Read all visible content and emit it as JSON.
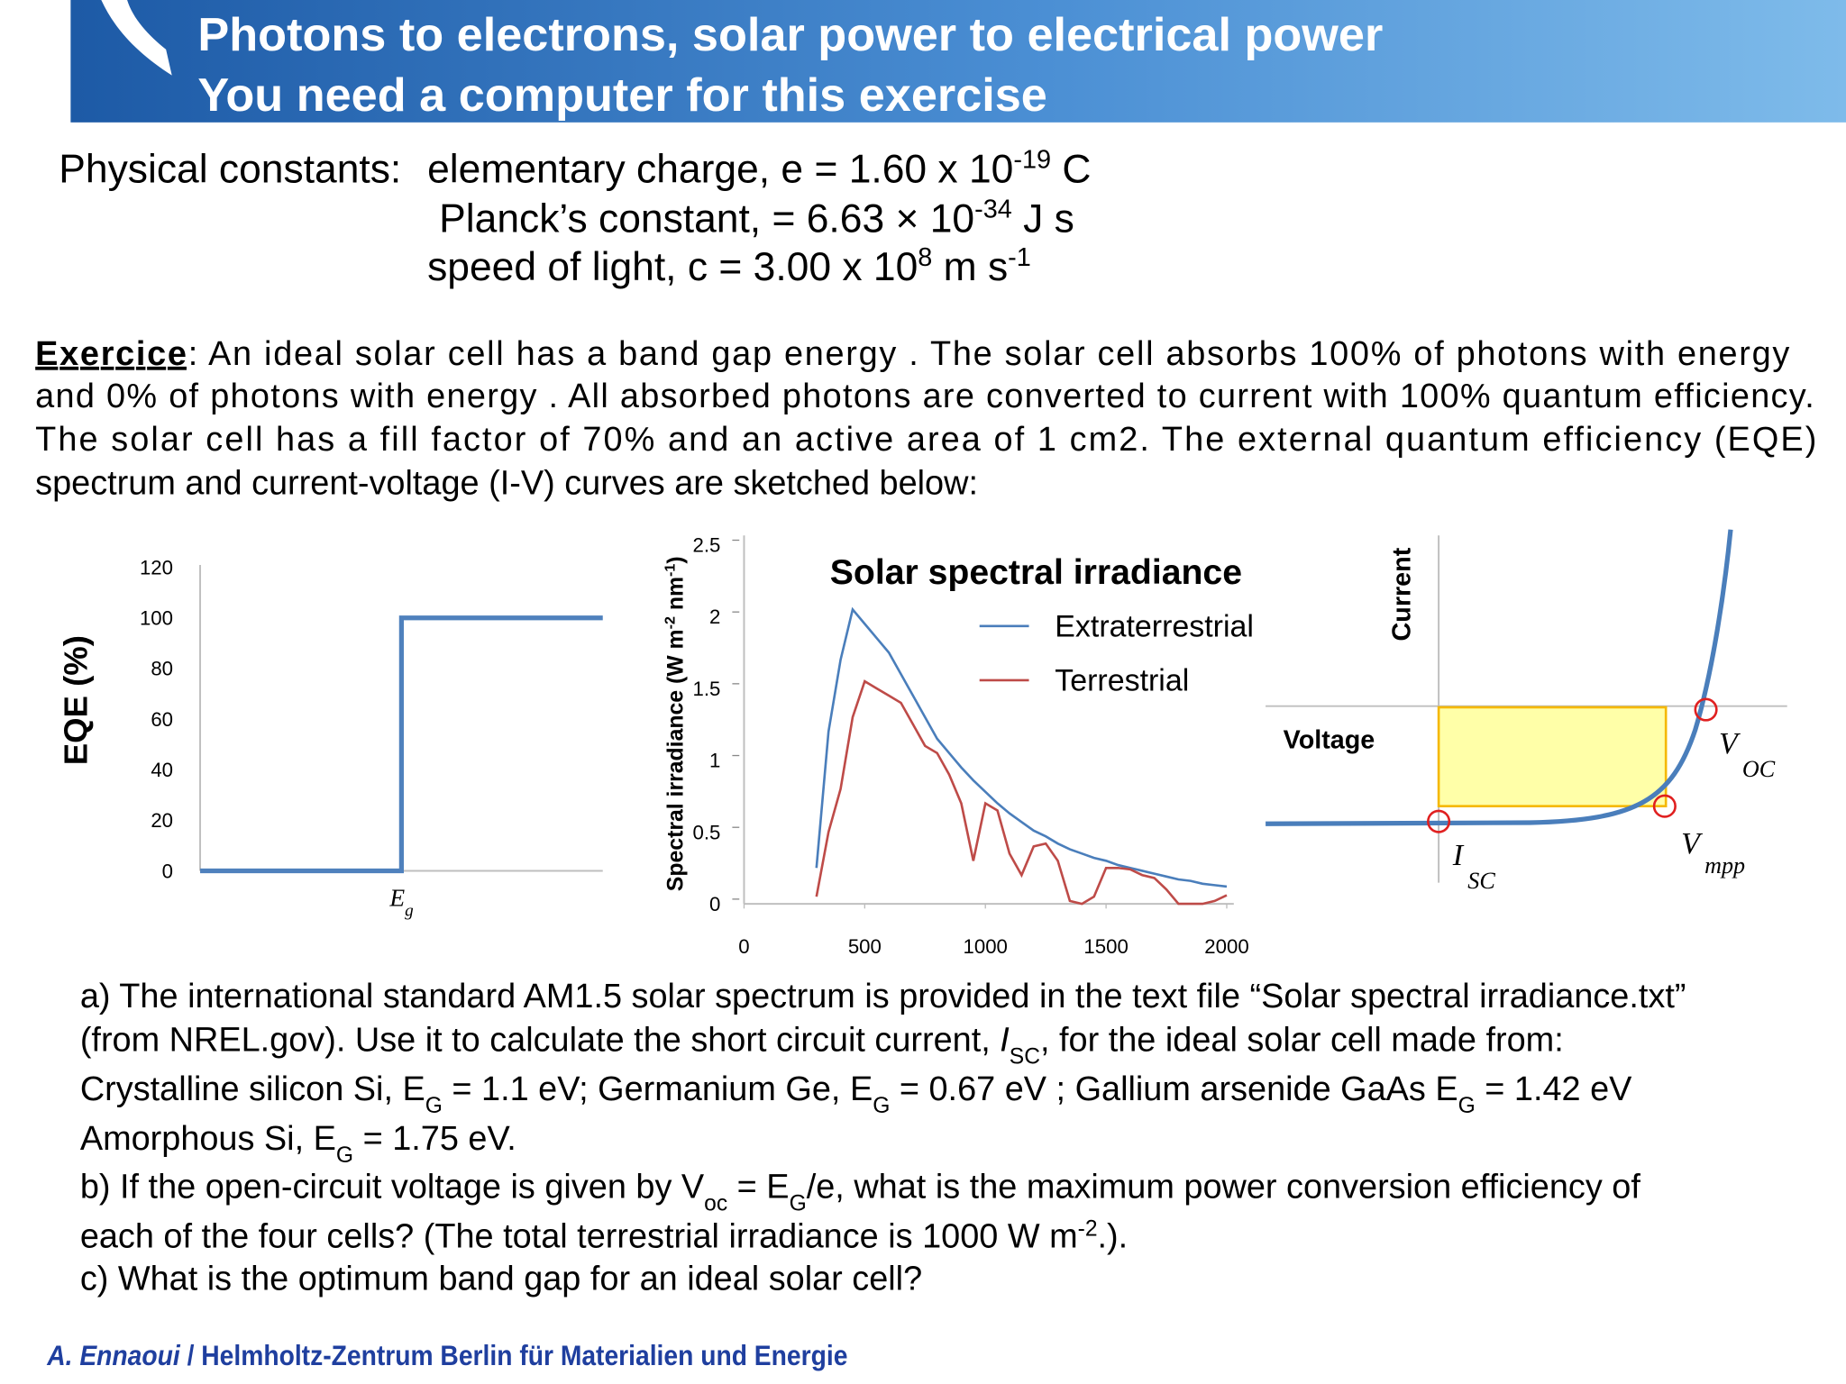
{
  "header": {
    "title": [
      "Photons to electrons, solar power to electrical power",
      "You need a computer for this exercise"
    ]
  },
  "constants": {
    "label": "Physical constants:",
    "charge": [
      "elementary charge, e = 1.60 x 10",
      {
        "sup": "-19"
      },
      " C"
    ],
    "planck": [
      "Planck’s constant,   = 6.63 × 10",
      {
        "sup": "-34"
      },
      " J s"
    ],
    "light": [
      "speed of light, c = 3.00 x 10",
      {
        "sup": "8"
      },
      " m s",
      {
        "sup": "-1"
      }
    ]
  },
  "exercise": [
    [
      {
        "u": "Exercice"
      },
      ": An ideal solar cell has a band gap energy   . The solar cell absorbs 100% of photons with energy"
    ],
    [
      "and 0% of photons with energy  . All absorbed photons are converted to current with 100% quantum efficiency."
    ],
    [
      "The solar cell has a fill factor of 70% and an active area of 1 cm2. The external quantum efficiency (EQE)"
    ],
    [
      "spectrum and current-voltage (I-V) curves are sketched below:"
    ]
  ],
  "chart_data": [
    {
      "type": "step",
      "y_label": "EQE (%)",
      "categories": [
        null,
        {
          "symbol": "E",
          "subscript": "g"
        },
        null
      ],
      "values": [
        0,
        100,
        100
      ],
      "color": "#4f81bd",
      "ylim": [
        0,
        120
      ],
      "yticks": [
        0,
        20,
        40,
        60,
        80,
        100,
        120
      ]
    },
    {
      "type": "line",
      "title": "Solar spectral irradiance",
      "y_label": [
        "Spectral irradiance (W m",
        {
          "sup": "-2"
        },
        " nm",
        {
          "sup": "-1"
        },
        ")"
      ],
      "x": [
        300,
        350,
        400,
        450,
        500,
        550,
        600,
        650,
        700,
        750,
        800,
        850,
        900,
        950,
        1000,
        1050,
        1100,
        1150,
        1200,
        1250,
        1300,
        1350,
        1400,
        1450,
        1500,
        1550,
        1600,
        1650,
        1700,
        1750,
        1800,
        1850,
        1900,
        1950,
        2000
      ],
      "series": [
        {
          "name": "Extraterrestrial",
          "color": "#4a7ebb",
          "values": [
            0.25,
            1.2,
            1.7,
            2.05,
            1.95,
            1.85,
            1.75,
            1.6,
            1.45,
            1.3,
            1.15,
            1.05,
            0.95,
            0.86,
            0.78,
            0.7,
            0.63,
            0.57,
            0.51,
            0.47,
            0.42,
            0.38,
            0.35,
            0.32,
            0.3,
            0.27,
            0.25,
            0.23,
            0.21,
            0.19,
            0.17,
            0.16,
            0.14,
            0.13,
            0.12
          ]
        },
        {
          "name": "Terrestrial",
          "color": "#be4b48",
          "values": [
            0.05,
            0.5,
            0.8,
            1.3,
            1.55,
            1.5,
            1.45,
            1.4,
            1.25,
            1.1,
            1.05,
            0.9,
            0.7,
            0.3,
            0.7,
            0.65,
            0.35,
            0.2,
            0.4,
            0.42,
            0.3,
            0.02,
            0.0,
            0.05,
            0.25,
            0.25,
            0.24,
            0.2,
            0.18,
            0.1,
            0.0,
            0.0,
            0.0,
            0.02,
            0.06
          ]
        }
      ],
      "xlim": [
        0,
        2000
      ],
      "xticks": [
        0,
        500,
        1000,
        1500,
        2000
      ],
      "ylim": [
        0,
        2.5
      ],
      "yticks": [
        0,
        0.5,
        1,
        1.5,
        2,
        2.5
      ],
      "legend": "upper right"
    }
  ],
  "iv_sketch": {
    "y_label": "Current",
    "x_label": "Voltage",
    "isc": {
      "symbol": "I",
      "subscript": "SC"
    },
    "voc": {
      "symbol": "V",
      "subscript": "OC"
    },
    "vmpp": {
      "symbol": "V",
      "subscript": "mpp"
    }
  },
  "questions": [
    [
      "a) The international standard AM1.5 solar spectrum is provided in the text file “Solar spectral irradiance.txt”"
    ],
    [
      "(from NREL.gov). Use it to calculate the short circuit current, ",
      {
        "i": "I"
      },
      {
        "sub": "SC"
      },
      ", for the ideal solar cell made from:"
    ],
    [
      "Crystalline silicon Si, E",
      {
        "sub": "G"
      },
      " = 1.1 eV; Germanium Ge, E",
      {
        "sub": "G"
      },
      " = 0.67 eV ; Gallium arsenide GaAs E",
      {
        "sub": "G"
      },
      " = 1.42 eV"
    ],
    [
      "Amorphous Si, E",
      {
        "sub": "G"
      },
      " = 1.75 eV."
    ],
    [
      "b) If the open-circuit voltage is given by V",
      {
        "sub": "oc"
      },
      " = E",
      {
        "sub": "G"
      },
      "/e, what is the maximum power conversion efficiency of"
    ],
    [
      "each of the four cells? (The total terrestrial irradiance is 1000 W m",
      {
        "sup": "-2"
      },
      ".)."
    ],
    [
      "c) What is the optimum band gap for an ideal solar cell?"
    ]
  ],
  "footer": [
    {
      "i": "A. Ennaoui"
    },
    " / Helmholtz-Zentrum Berlin für Materialien und Energie"
  ]
}
